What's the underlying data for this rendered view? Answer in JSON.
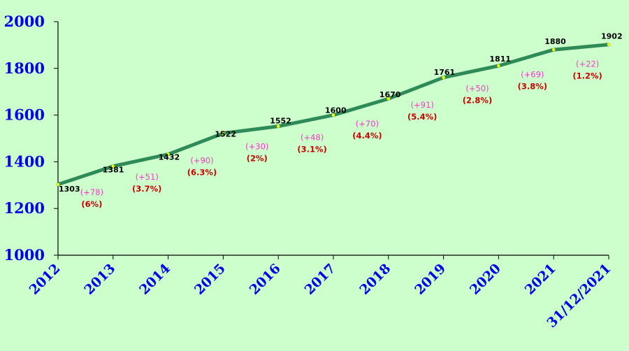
{
  "chart_data": {
    "type": "line",
    "title": "",
    "xlabel": "",
    "ylabel": "",
    "ylim": [
      1000,
      2000
    ],
    "yticks": [
      1000,
      1200,
      1400,
      1600,
      1800,
      2000
    ],
    "grid": false,
    "categories": [
      "2012",
      "2013",
      "2014",
      "2015",
      "2016",
      "2017",
      "2018",
      "2019",
      "2020",
      "2021",
      "31/12/2021"
    ],
    "series": [
      {
        "values": [
          1303,
          1381,
          1432,
          1522,
          1552,
          1600,
          1670,
          1761,
          1811,
          1880,
          1902
        ]
      }
    ],
    "value_labels": [
      "1303",
      "1381",
      "1432",
      "1522",
      "1552",
      "1600",
      "1670",
      "1761",
      "1811",
      "1880",
      "1902"
    ],
    "change_annotations": [
      {
        "delta": "(+78)",
        "percent": "(6%)"
      },
      {
        "delta": "(+51)",
        "percent": "(3.7%)"
      },
      {
        "delta": "(+90)",
        "percent": "(6.3%)"
      },
      {
        "delta": "(+30)",
        "percent": "(2%)"
      },
      {
        "delta": "(+48)",
        "percent": "(3.1%)"
      },
      {
        "delta": "(+70)",
        "percent": "(4.4%)"
      },
      {
        "delta": "(+91)",
        "percent": "(5.4%)"
      },
      {
        "delta": "(+50)",
        "percent": "(2.8%)"
      },
      {
        "delta": "(+69)",
        "percent": "(3.8%)"
      },
      {
        "delta": "(+22)",
        "percent": "(1.2%)"
      }
    ],
    "colors": {
      "background": "#ccffcc",
      "line": "#2e8b57",
      "marker": "#ffff00",
      "axis": "#000000",
      "tick_label": "#0000ee",
      "value_label": "#000000",
      "delta_label": "#ff33cc",
      "percent_label": "#cc0000"
    }
  }
}
